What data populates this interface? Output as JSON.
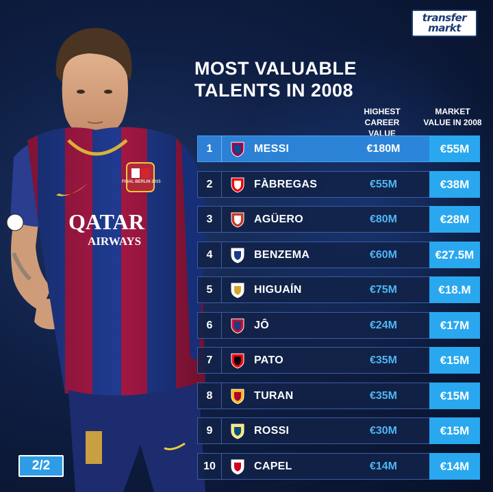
{
  "logo": {
    "line1": "transfer",
    "line2_prefix": "",
    "line2": "markt"
  },
  "title": "MOST VALUABLE TALENTS IN 2008",
  "columns": {
    "career": "HIGHEST CAREER VALUE",
    "market": "MARKET VALUE IN 2008"
  },
  "rows": [
    {
      "rank": "1",
      "name": "MESSI",
      "career": "€180M",
      "market": "€55M",
      "crest": "barcelona-crest-icon",
      "c1": "#a50044",
      "c2": "#004d98"
    },
    {
      "rank": "2",
      "name": "FÀBREGAS",
      "career": "€55M",
      "market": "€38M",
      "crest": "arsenal-crest-icon",
      "c1": "#ef0107",
      "c2": "#ffffff"
    },
    {
      "rank": "3",
      "name": "AGÜERO",
      "career": "€80M",
      "market": "€28M",
      "crest": "atletico-crest-icon",
      "c1": "#cb3524",
      "c2": "#ffffff"
    },
    {
      "rank": "4",
      "name": "BENZEMA",
      "career": "€60M",
      "market": "€27.5M",
      "crest": "lyon-crest-icon",
      "c1": "#ffffff",
      "c2": "#1a3a8a"
    },
    {
      "rank": "5",
      "name": "HIGUAÍN",
      "career": "€75M",
      "market": "€18.M",
      "crest": "real-madrid-crest-icon",
      "c1": "#ffffff",
      "c2": "#d4a72c"
    },
    {
      "rank": "6",
      "name": "JÔ",
      "career": "€24M",
      "market": "€17M",
      "crest": "cska-crest-icon",
      "c1": "#c8102e",
      "c2": "#1d3b8a"
    },
    {
      "rank": "7",
      "name": "PATO",
      "career": "€35M",
      "market": "€15M",
      "crest": "milan-crest-icon",
      "c1": "#fb090b",
      "c2": "#000000"
    },
    {
      "rank": "8",
      "name": "TURAN",
      "career": "€35M",
      "market": "€15M",
      "crest": "galatasaray-crest-icon",
      "c1": "#fdb912",
      "c2": "#a90432"
    },
    {
      "rank": "9",
      "name": "ROSSI",
      "career": "€30M",
      "market": "€15M",
      "crest": "villarreal-crest-icon",
      "c1": "#ffe667",
      "c2": "#005187"
    },
    {
      "rank": "10",
      "name": "CAPEL",
      "career": "€14M",
      "market": "€14M",
      "crest": "sevilla-crest-icon",
      "c1": "#ffffff",
      "c2": "#d4001f"
    }
  ],
  "shirt": {
    "sponsor_line1": "QATAR",
    "sponsor_line2": "AIRWAYS",
    "badge_text": "FINAL BERLIN 2015"
  },
  "page_indicator": "2/2"
}
